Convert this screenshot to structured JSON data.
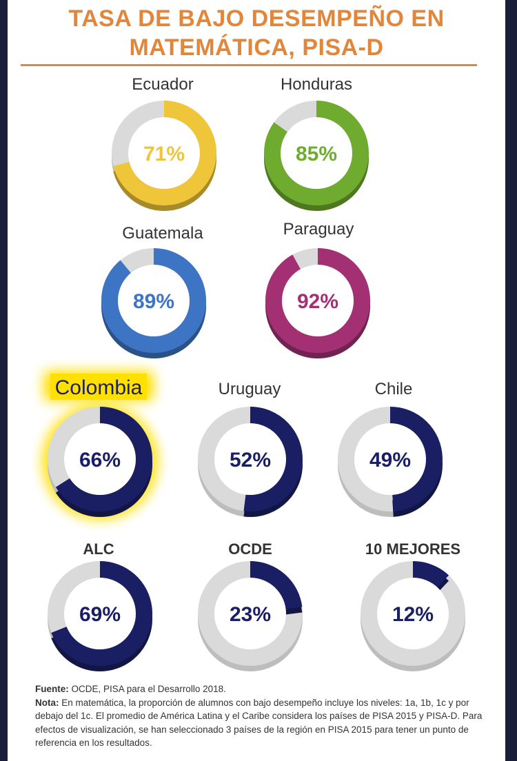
{
  "header": {
    "title_line1": "TASA DE BAJO DESEMPEÑO EN",
    "title_line2": "MATEMÁTICA, PISA-D"
  },
  "colors": {
    "title": "#e2863a",
    "track": "#dadada",
    "highlight": "#ffe000",
    "navy": "#1a1f63"
  },
  "chart_data": {
    "type": "donut",
    "title": "TASA DE BAJO DESEMPEÑO EN MATEMÁTICA, PISA-D",
    "unit": "%",
    "items": [
      {
        "label": "Ecuador",
        "value": 71,
        "value_label": "71%",
        "color": "#efc53a"
      },
      {
        "label": "Honduras",
        "value": 85,
        "value_label": "85%",
        "color": "#6fab2e"
      },
      {
        "label": "Guatemala",
        "value": 89,
        "value_label": "89%",
        "color": "#3d74c4"
      },
      {
        "label": "Paraguay",
        "value": 92,
        "value_label": "92%",
        "color": "#a33072"
      },
      {
        "label": "Colombia",
        "value": 66,
        "value_label": "66%",
        "color": "#1a1f63",
        "highlighted": true
      },
      {
        "label": "Uruguay",
        "value": 52,
        "value_label": "52%",
        "color": "#1a1f63"
      },
      {
        "label": "Chile",
        "value": 49,
        "value_label": "49%",
        "color": "#1a1f63"
      },
      {
        "label": "ALC",
        "value": 69,
        "value_label": "69%",
        "color": "#1a1f63"
      },
      {
        "label": "OCDE",
        "value": 23,
        "value_label": "23%",
        "color": "#1a1f63"
      },
      {
        "label": "10 MEJORES",
        "value": 12,
        "value_label": "12%",
        "color": "#1a1f63"
      }
    ]
  },
  "footnote": {
    "source_label": "Fuente:",
    "source_text": " OCDE, PISA para el Desarrollo 2018.",
    "note_label": "Nota:",
    "note_text": " En matemática, la proporción de alumnos con bajo desempeño incluye los niveles: 1a, 1b, 1c y por debajo del 1c. El promedio de América Latina y el Caribe considera los países de PISA 2015 y PISA-D.  Para efectos de visualización, se han seleccionado 3 países de la región en PISA 2015 para tener un punto de referencia en los resultados."
  }
}
